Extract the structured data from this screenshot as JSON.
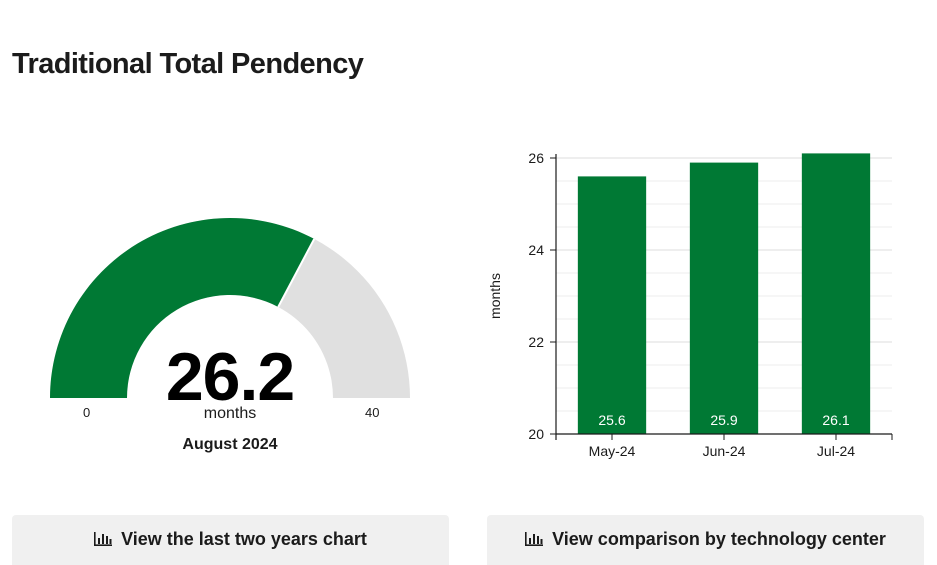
{
  "page": {
    "title": "Traditional Total Pendency"
  },
  "gauge": {
    "value": 26.2,
    "value_label": "26.2",
    "unit": "months",
    "min": 0,
    "max": 40,
    "min_label": "0",
    "max_label": "40",
    "period": "August 2024",
    "fill_color": "#007934",
    "track_color": "#e0e0e0"
  },
  "chart_data": {
    "type": "bar",
    "categories": [
      "May-24",
      "Jun-24",
      "Jul-24"
    ],
    "values": [
      25.6,
      25.9,
      26.1
    ],
    "value_labels": [
      "25.6",
      "25.9",
      "26.1"
    ],
    "title": "",
    "xlabel": "",
    "ylabel": "months",
    "ylim": [
      20,
      26
    ],
    "yticks": [
      20,
      22,
      24,
      26
    ],
    "ytick_labels": [
      "20",
      "22",
      "24",
      "26"
    ],
    "grid": true,
    "bar_color": "#007934"
  },
  "buttons": {
    "two_years_label": "View the last two years chart",
    "two_years_icon": "bar-chart-icon",
    "comparison_label": "View comparison by technology center",
    "comparison_icon": "bar-chart-icon"
  }
}
